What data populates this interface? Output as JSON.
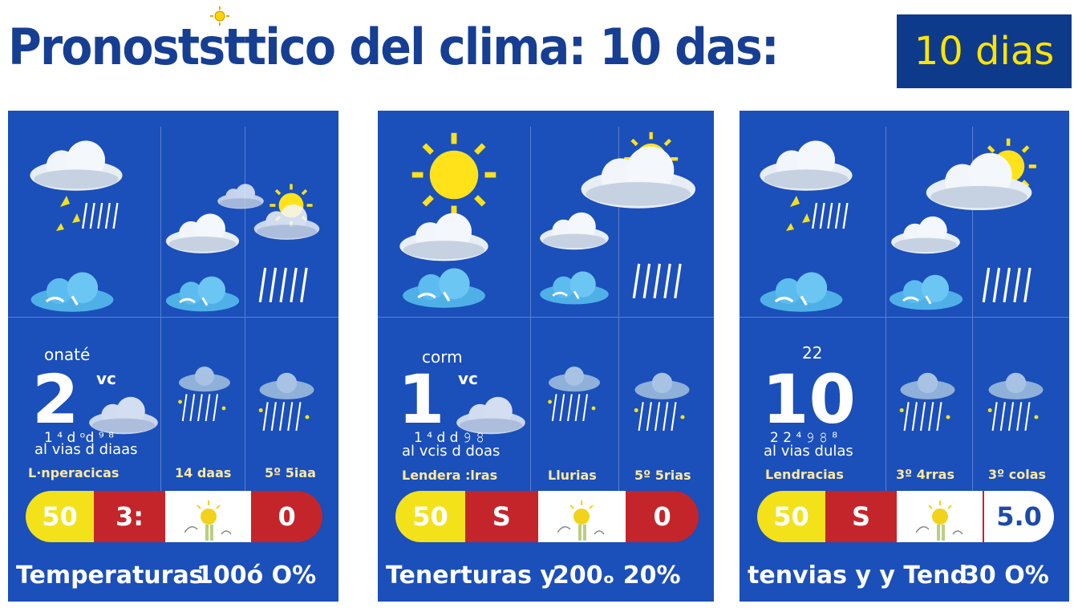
{
  "header": {
    "title": "Pronoststtico del clima: 10 das:",
    "badge": "10 dias"
  },
  "colors": {
    "panel": "#1b4fba",
    "title": "#163e93",
    "badge_bg": "#0e3a8c",
    "badge_text": "#ffe400",
    "yellow": "#f3e21a",
    "red": "#c4252a"
  },
  "panels": [
    {
      "small": "onaté",
      "temp": "2",
      "unit": "vc",
      "digits": "1 ⁴ d ᵒd ⁹ ⁸",
      "days_text": "al vias d diaas",
      "label1": "L·nperacicas",
      "label2": "14 daas",
      "label3": "5º 5iaa",
      "pill": [
        "50",
        "3:",
        "",
        "0"
      ],
      "last_style": "red",
      "footer_left": "Temperaturas",
      "footer_right": "100ó O%"
    },
    {
      "small": "corm",
      "temp": "1",
      "unit": "vc",
      "digits": "1 ⁴ d d 𝟿 𝟾",
      "days_text": "al vcis d doas",
      "label1": "Lendera :lras",
      "label2": "Llurias",
      "label3": "5º 5rias",
      "pill": [
        "50",
        "S",
        "",
        "0"
      ],
      "last_style": "red",
      "footer_left": "Tenerturas y",
      "footer_right": "200ₒ   20%"
    },
    {
      "small": "22",
      "temp": "10",
      "unit": "",
      "digits": "2 2 ⁴ 𝟿 𝟾 ⁸",
      "days_text": "al vias dulas",
      "label1": "Lendracias",
      "label2": "3º 4rras",
      "label3": "3º colas",
      "pill": [
        "50",
        "S",
        "",
        "5.0"
      ],
      "last_style": "white",
      "footer_left": "tenvias y y  Tend",
      "footer_right": "30 O%"
    }
  ]
}
